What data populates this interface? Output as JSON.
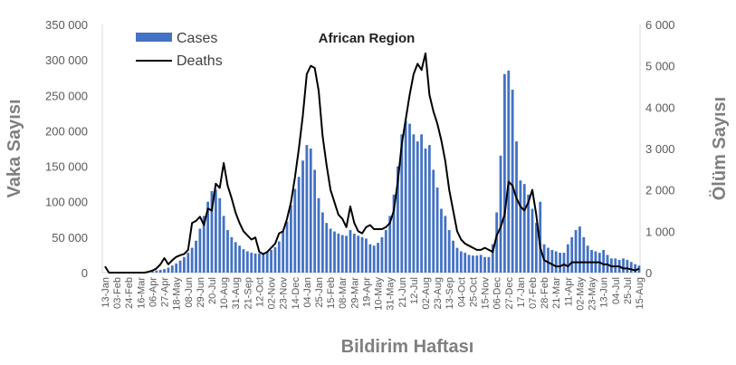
{
  "chart_data": {
    "type": "bar+line",
    "title": "African Region",
    "xlabel": "Bildirim Haftası",
    "ylabel_left": "Vaka Sayısı",
    "ylabel_right": "Ölüm Sayısı",
    "ylim_left": [
      0,
      350000
    ],
    "ylim_right": [
      0,
      6000
    ],
    "yticks_left": [
      "0",
      "50 000",
      "100 000",
      "150 000",
      "200 000",
      "250 000",
      "300 000",
      "350 000"
    ],
    "yticks_right": [
      "0",
      "1 000",
      "2 000",
      "3 000",
      "4 000",
      "5 000",
      "6 000"
    ],
    "x_tick_labels": [
      "13-Jan",
      "03-Feb",
      "24-Feb",
      "16-Mar",
      "06-Apr",
      "27-Apr",
      "18-May",
      "08-Jun",
      "29-Jun",
      "20-Jul",
      "10-Aug",
      "31-Aug",
      "21-Sep",
      "12-Oct",
      "02-Nov",
      "23-Nov",
      "14-Dec",
      "04-Jan",
      "25-Jan",
      "15-Feb",
      "08-Mar",
      "29-Mar",
      "19-Apr",
      "10-May",
      "31-May",
      "21-Jun",
      "12-Jul",
      "02-Aug",
      "23-Aug",
      "13-Sep",
      "04-Oct",
      "25-Oct",
      "15-Nov",
      "06-Dec",
      "27-Dec",
      "17-Jan",
      "07-Feb",
      "28-Feb",
      "21-Mar",
      "11-Apr",
      "02-May",
      "23-May",
      "13-Jun",
      "04-Jul",
      "25-Jul",
      "15-Aug"
    ],
    "x_tick_every_weeks": 3,
    "legend": {
      "position": "top-left",
      "entries": [
        "Cases",
        "Deaths"
      ]
    },
    "series": [
      {
        "name": "Cases",
        "axis": "left",
        "type": "bar",
        "color": "#4472c4",
        "values": [
          0,
          0,
          0,
          0,
          0,
          0,
          0,
          0,
          0,
          0,
          1000,
          1000,
          2000,
          3000,
          4000,
          5000,
          7000,
          10000,
          13000,
          17000,
          22000,
          28000,
          35000,
          45000,
          62000,
          80000,
          100000,
          115000,
          117000,
          105000,
          80000,
          60000,
          50000,
          43000,
          38000,
          33000,
          30000,
          28000,
          27000,
          27000,
          28000,
          30000,
          32000,
          36000,
          44000,
          58000,
          72000,
          95000,
          118000,
          135000,
          158000,
          180000,
          175000,
          145000,
          105000,
          85000,
          70000,
          62000,
          58000,
          55000,
          53000,
          52000,
          60000,
          55000,
          52000,
          50000,
          48000,
          40000,
          38000,
          42000,
          50000,
          60000,
          80000,
          110000,
          150000,
          195000,
          215000,
          210000,
          195000,
          185000,
          195000,
          175000,
          180000,
          145000,
          120000,
          90000,
          80000,
          60000,
          45000,
          35000,
          30000,
          28000,
          25000,
          24000,
          24000,
          25000,
          22000,
          22000,
          40000,
          85000,
          165000,
          280000,
          285000,
          258000,
          185000,
          130000,
          125000,
          110000,
          90000,
          70000,
          100000,
          40000,
          35000,
          32000,
          30000,
          28000,
          28000,
          40000,
          50000,
          60000,
          65000,
          50000,
          38000,
          32000,
          30000,
          28000,
          32000,
          25000,
          20000,
          20000,
          18000,
          20000,
          18000,
          15000,
          12000,
          10000
        ]
      },
      {
        "name": "Deaths",
        "axis": "right",
        "type": "line",
        "color": "#000000",
        "values": [
          150,
          0,
          0,
          0,
          0,
          0,
          0,
          0,
          0,
          0,
          0,
          20,
          50,
          100,
          200,
          350,
          200,
          300,
          380,
          420,
          450,
          550,
          1200,
          1250,
          1350,
          1150,
          1550,
          1500,
          2150,
          2050,
          2650,
          2100,
          1800,
          1450,
          1200,
          1000,
          900,
          800,
          850,
          500,
          450,
          500,
          600,
          700,
          950,
          1000,
          1300,
          1700,
          2300,
          3000,
          3800,
          4800,
          5000,
          4950,
          4400,
          3300,
          2600,
          2000,
          1700,
          1400,
          1300,
          1100,
          1600,
          1200,
          1000,
          950,
          1100,
          1150,
          1050,
          1050,
          1050,
          1100,
          1200,
          1500,
          2200,
          3100,
          3700,
          4300,
          4800,
          5050,
          4900,
          5300,
          4300,
          3900,
          3600,
          3200,
          2700,
          2000,
          1500,
          1000,
          800,
          700,
          650,
          600,
          550,
          550,
          600,
          550,
          500,
          900,
          1100,
          1400,
          2200,
          2100,
          1800,
          1600,
          1500,
          1700,
          2000,
          1400,
          600,
          300,
          250,
          200,
          150,
          150,
          200,
          150,
          250,
          250,
          250,
          250,
          250,
          250,
          250,
          250,
          200,
          200,
          150,
          150,
          150,
          100,
          100,
          80,
          50,
          100
        ]
      }
    ]
  }
}
